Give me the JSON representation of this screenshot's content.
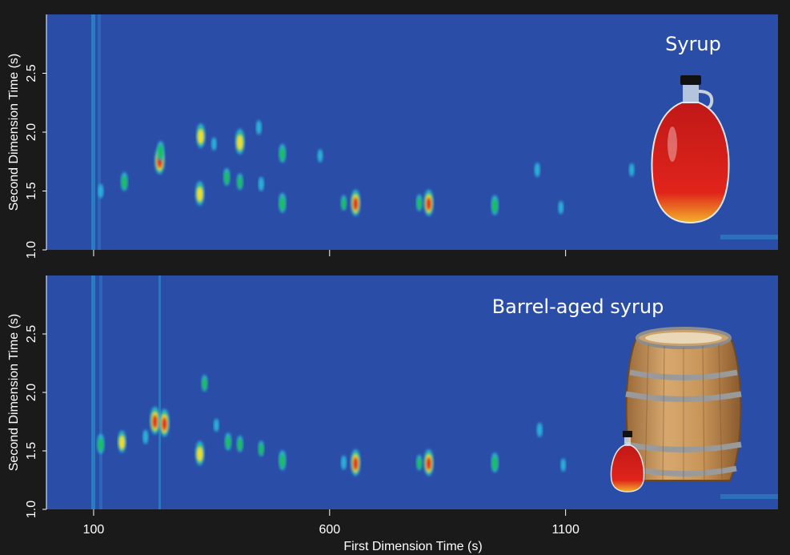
{
  "chart_data": [
    {
      "type": "heatmap",
      "title": "Syrup",
      "xlabel": "",
      "ylabel": "Second Dimension Time (s)",
      "xlim": [
        0,
        1550
      ],
      "ylim": [
        1.0,
        3.0
      ],
      "x_ticks": [
        100,
        600,
        1100
      ],
      "y_ticks": [
        1.0,
        1.5,
        2.0,
        2.5
      ],
      "y_tick_labels": [
        "1.0",
        "1.5",
        "2.0",
        "2.5"
      ],
      "colormap": [
        "#2a4ea8",
        "#2bb0d8",
        "#1fbf5a",
        "#f0e020",
        "#e0261c"
      ],
      "image": "maple-syrup-bottle",
      "peaks": [
        {
          "x": 115,
          "y": 1.5,
          "v": 0.35
        },
        {
          "x": 165,
          "y": 1.58,
          "v": 0.55
        },
        {
          "x": 240,
          "y": 1.76,
          "v": 0.95
        },
        {
          "x": 242,
          "y": 1.84,
          "v": 0.6
        },
        {
          "x": 325,
          "y": 1.48,
          "v": 0.8
        },
        {
          "x": 327,
          "y": 1.97,
          "v": 0.8
        },
        {
          "x": 355,
          "y": 1.9,
          "v": 0.3
        },
        {
          "x": 382,
          "y": 1.62,
          "v": 0.5
        },
        {
          "x": 410,
          "y": 1.92,
          "v": 0.85
        },
        {
          "x": 410,
          "y": 1.58,
          "v": 0.45
        },
        {
          "x": 450,
          "y": 2.04,
          "v": 0.35
        },
        {
          "x": 455,
          "y": 1.56,
          "v": 0.35
        },
        {
          "x": 500,
          "y": 1.82,
          "v": 0.55
        },
        {
          "x": 500,
          "y": 1.4,
          "v": 0.6
        },
        {
          "x": 580,
          "y": 1.8,
          "v": 0.3
        },
        {
          "x": 630,
          "y": 1.4,
          "v": 0.4
        },
        {
          "x": 655,
          "y": 1.4,
          "v": 0.9
        },
        {
          "x": 790,
          "y": 1.4,
          "v": 0.45
        },
        {
          "x": 810,
          "y": 1.4,
          "v": 0.9
        },
        {
          "x": 950,
          "y": 1.38,
          "v": 0.6
        },
        {
          "x": 1040,
          "y": 1.68,
          "v": 0.35
        },
        {
          "x": 1090,
          "y": 1.36,
          "v": 0.3
        },
        {
          "x": 1240,
          "y": 1.68,
          "v": 0.3
        }
      ]
    },
    {
      "type": "heatmap",
      "title": "Barrel-aged syrup",
      "xlabel": "First Dimension Time (s)",
      "ylabel": "Second Dimension Time (s)",
      "xlim": [
        0,
        1550
      ],
      "ylim": [
        1.0,
        3.0
      ],
      "x_ticks": [
        100,
        600,
        1100
      ],
      "y_ticks": [
        1.0,
        1.5,
        2.0,
        2.5
      ],
      "y_tick_labels": [
        "1.0",
        "1.5",
        "2.0",
        "2.5"
      ],
      "colormap": [
        "#2a4ea8",
        "#2bb0d8",
        "#1fbf5a",
        "#f0e020",
        "#e0261c"
      ],
      "image": "oak-barrel-and-syrup-bottle",
      "peaks": [
        {
          "x": 115,
          "y": 1.56,
          "v": 0.6
        },
        {
          "x": 160,
          "y": 1.58,
          "v": 0.7
        },
        {
          "x": 210,
          "y": 1.62,
          "v": 0.35
        },
        {
          "x": 230,
          "y": 1.76,
          "v": 0.95
        },
        {
          "x": 250,
          "y": 1.74,
          "v": 0.95
        },
        {
          "x": 325,
          "y": 1.48,
          "v": 0.8
        },
        {
          "x": 335,
          "y": 2.08,
          "v": 0.45
        },
        {
          "x": 360,
          "y": 1.72,
          "v": 0.3
        },
        {
          "x": 385,
          "y": 1.58,
          "v": 0.5
        },
        {
          "x": 410,
          "y": 1.56,
          "v": 0.45
        },
        {
          "x": 455,
          "y": 1.52,
          "v": 0.4
        },
        {
          "x": 500,
          "y": 1.42,
          "v": 0.6
        },
        {
          "x": 630,
          "y": 1.4,
          "v": 0.35
        },
        {
          "x": 655,
          "y": 1.4,
          "v": 0.9
        },
        {
          "x": 790,
          "y": 1.4,
          "v": 0.4
        },
        {
          "x": 810,
          "y": 1.4,
          "v": 0.9
        },
        {
          "x": 950,
          "y": 1.4,
          "v": 0.6
        },
        {
          "x": 1045,
          "y": 1.68,
          "v": 0.35
        },
        {
          "x": 1095,
          "y": 1.38,
          "v": 0.3
        }
      ]
    }
  ]
}
